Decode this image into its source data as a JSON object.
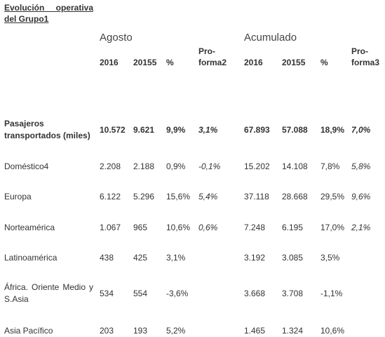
{
  "title": "Evolución operativa del Grupo1",
  "groups": {
    "month": "Agosto",
    "cumulative": "Acumulado"
  },
  "headers": {
    "year_current": "2016",
    "year_prior": "20155",
    "pct": "%",
    "proforma": "Pro-forma2",
    "year_current_cum": "2016",
    "year_prior_cum": "20155",
    "pct_cum": "%",
    "proforma_cum": "Pro-forma3",
    "proforma_line1": "Pro-",
    "proforma_line2": "forma2",
    "proforma_cum_line1": "Pro-",
    "proforma_cum_line2": "forma3"
  },
  "rows": [
    {
      "label": "Pasajeros transportados (miles)",
      "values": [
        "10.572",
        "9.621",
        "9,9%",
        "3,1%",
        "67.893",
        "57.088",
        "18,9%",
        "7,0%"
      ]
    },
    {
      "label": "Doméstico4",
      "values": [
        "2.208",
        "2.188",
        "0,9%",
        "-0,1%",
        "15.202",
        "14.108",
        "7,8%",
        "5,8%"
      ]
    },
    {
      "label": "Europa",
      "values": [
        "6.122",
        "5.296",
        "15,6%",
        "5,4%",
        "37.118",
        "28.668",
        "29,5%",
        "9,6%"
      ]
    },
    {
      "label": "Norteamérica",
      "values": [
        "1.067",
        "965",
        "10,6%",
        "0,6%",
        "7.248",
        "6.195",
        "17,0%",
        "2,1%"
      ]
    },
    {
      "label": "Latinoamérica",
      "values": [
        "438",
        "425",
        "3,1%",
        "",
        "3.192",
        "3.085",
        "3,5%",
        ""
      ]
    },
    {
      "label": "África. Oriente Medio y S.Asia",
      "values": [
        "534",
        "554",
        "-3,6%",
        "",
        "3.668",
        "3.708",
        "-1,1%",
        ""
      ]
    },
    {
      "label": "Asia Pacífico",
      "values": [
        "203",
        "193",
        "5,2%",
        "",
        "1.465",
        "1.324",
        "10,6%",
        ""
      ]
    }
  ]
}
